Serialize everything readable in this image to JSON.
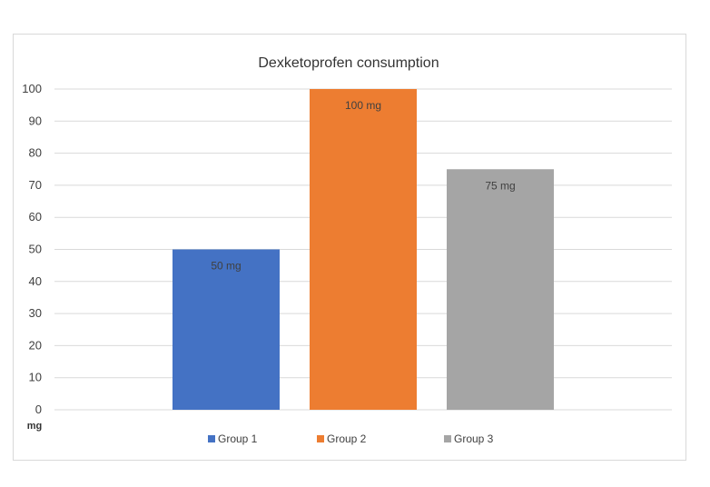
{
  "chart_data": {
    "type": "bar",
    "title": "Dexketoprofen consumption",
    "categories": [
      "Group 1",
      "Group 2",
      "Group 3"
    ],
    "values": [
      50,
      100,
      75
    ],
    "data_labels": [
      "50 mg",
      "100 mg",
      "75 mg"
    ],
    "colors": [
      "#4472c4",
      "#ed7d31",
      "#a5a5a5"
    ],
    "y_unit_label": "mg",
    "ylim": [
      0,
      100
    ],
    "yticks": [
      0,
      10,
      20,
      30,
      40,
      50,
      60,
      70,
      80,
      90,
      100
    ],
    "grid": true,
    "legend_position": "bottom",
    "legend": [
      "Group 1",
      "Group 2",
      "Group 3"
    ]
  }
}
